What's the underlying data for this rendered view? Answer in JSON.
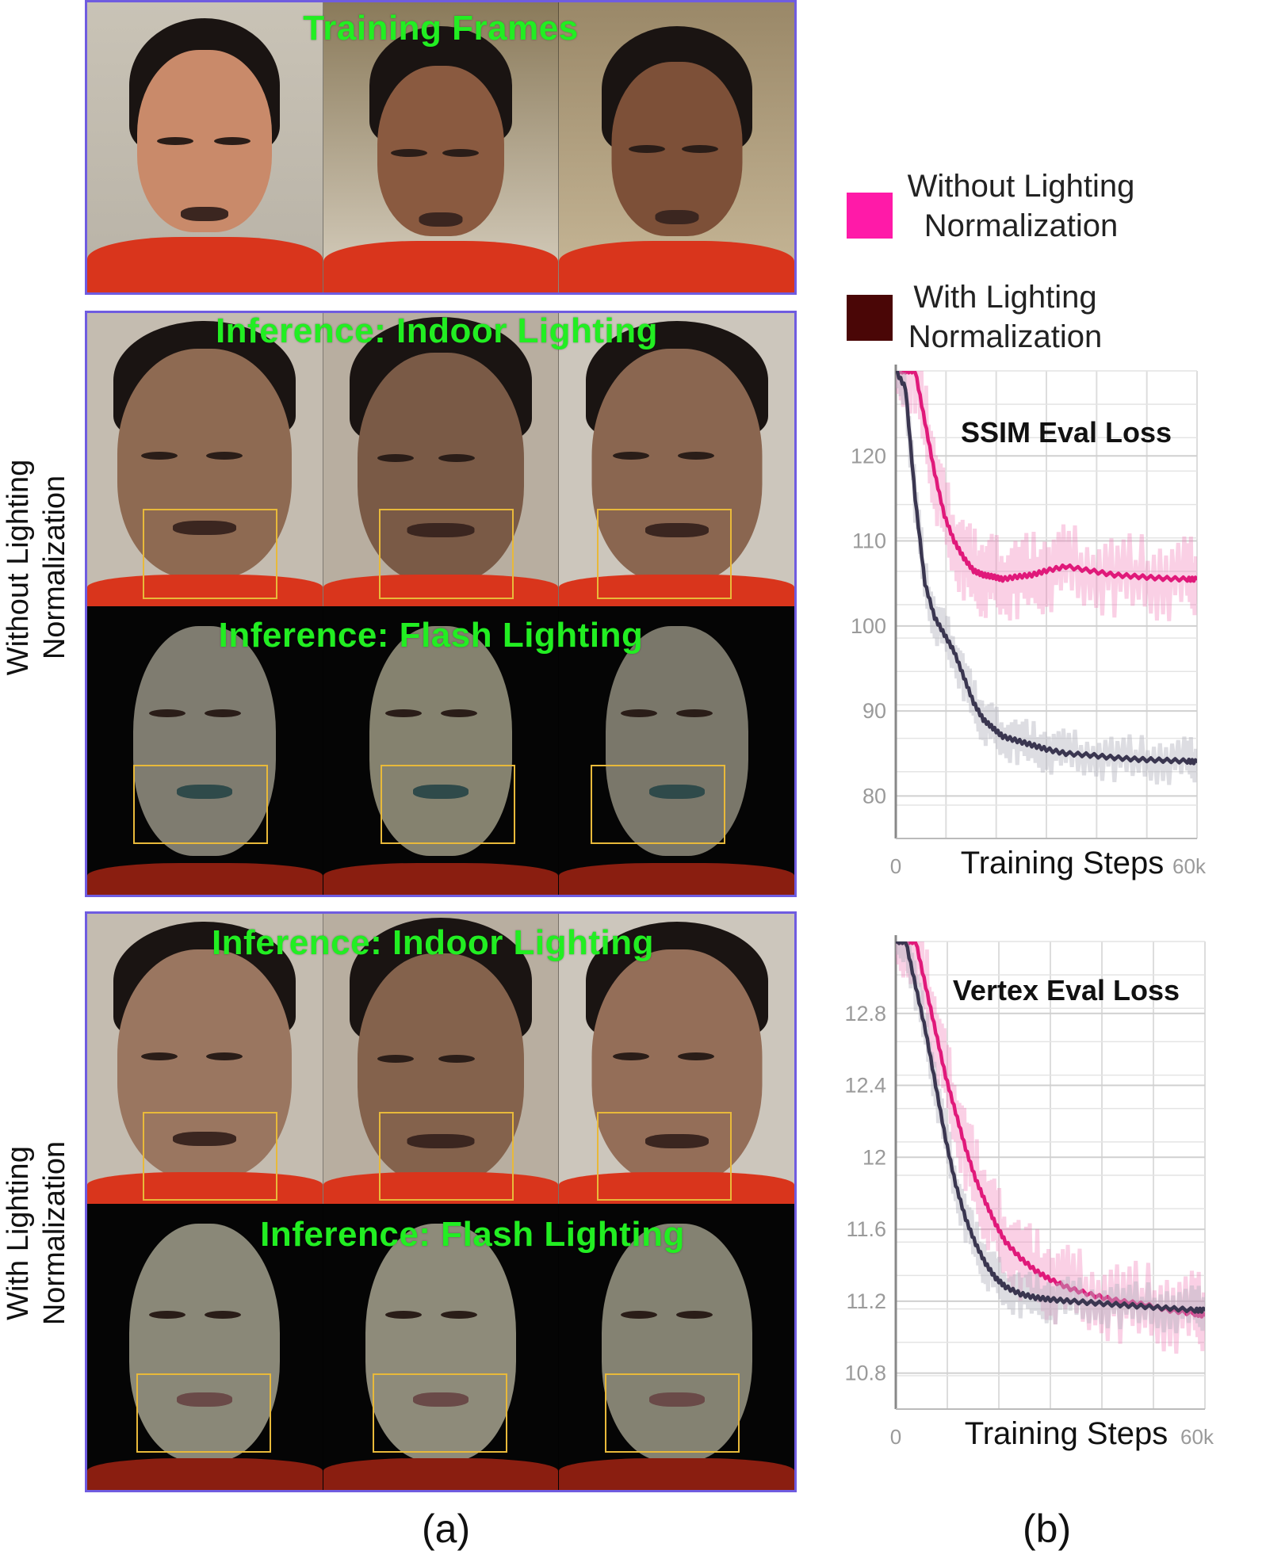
{
  "panel_a": {
    "training_title": "Training Frames",
    "without_indoor_title": "Inference: Indoor Lighting",
    "without_flash_title": "Inference: Flash Lighting",
    "with_indoor_title": "Inference: Indoor Lighting",
    "with_flash_title": "Inference: Flash Lighting",
    "side_label_without": "Without Lighting Normalization",
    "side_label_with": "With Lighting Normalization",
    "caption": "(a)"
  },
  "panel_b": {
    "caption": "(b)",
    "legend": [
      {
        "label_line1": "Without Lighting",
        "label_line2": "Normalization",
        "color": "#ff1aa8"
      },
      {
        "label_line1": "With Lighting",
        "label_line2": "Normalization",
        "color": "#4a0606"
      }
    ]
  },
  "colors": {
    "panel_border": "#6f5ce0",
    "title_green": "#22ee22",
    "mouth_box": "#e8b93a",
    "without_series": "#e0197a",
    "with_series": "#3a3650"
  },
  "chart_data": [
    {
      "type": "line",
      "title": "SSIM Eval Loss",
      "xlabel": "Training Steps",
      "x_tick_labels": [
        "0",
        "60k"
      ],
      "xlim": [
        0,
        62000
      ],
      "y_ticks": [
        120,
        110,
        100,
        90,
        80
      ],
      "ylim": [
        75,
        130
      ],
      "grid": true,
      "x": [
        0,
        2000,
        4000,
        6000,
        8000,
        10000,
        12000,
        14000,
        16000,
        18000,
        20000,
        22000,
        25000,
        28000,
        31000,
        35000,
        40000,
        45000,
        50000,
        55000,
        60000,
        62000
      ],
      "series": [
        {
          "name": "Without Lighting Normalization",
          "values": [
            130,
            130,
            130,
            124,
            118,
            113,
            110,
            108,
            106.5,
            106,
            105.8,
            105.5,
            105.8,
            106,
            106.5,
            107,
            106.5,
            106,
            105.8,
            105.6,
            105.5,
            105.5
          ]
        },
        {
          "name": "With Lighting Normalization",
          "values": [
            130,
            128,
            115,
            105,
            101,
            99,
            97,
            94,
            91,
            89,
            88,
            87,
            86.5,
            86,
            85.5,
            85,
            84.8,
            84.5,
            84.3,
            84.2,
            84.1,
            84
          ]
        }
      ]
    },
    {
      "type": "line",
      "title": "Vertex Eval Loss",
      "xlabel": "Training Steps",
      "x_tick_labels": [
        "0",
        "60k"
      ],
      "xlim": [
        0,
        62000
      ],
      "y_ticks": [
        12.8,
        12.4,
        12,
        11.6,
        11.2,
        10.8
      ],
      "y_tick_labels": [
        "12.8",
        "12.4",
        "12",
        "11.6",
        "11.2",
        "10.8"
      ],
      "ylim": [
        10.6,
        13.2
      ],
      "grid": true,
      "x": [
        0,
        2000,
        4000,
        6000,
        8000,
        10000,
        12000,
        14000,
        16000,
        18000,
        20000,
        22000,
        25000,
        28000,
        31000,
        35000,
        40000,
        45000,
        50000,
        55000,
        60000,
        62000
      ],
      "series": [
        {
          "name": "Without Lighting Normalization",
          "values": [
            13.2,
            13.2,
            13.2,
            12.95,
            12.7,
            12.45,
            12.25,
            12.05,
            11.88,
            11.75,
            11.63,
            11.53,
            11.44,
            11.37,
            11.32,
            11.27,
            11.23,
            11.2,
            11.18,
            11.15,
            11.13,
            11.12
          ]
        },
        {
          "name": "With Lighting Normalization",
          "values": [
            13.2,
            13.2,
            12.95,
            12.7,
            12.4,
            12.1,
            11.85,
            11.66,
            11.52,
            11.41,
            11.33,
            11.28,
            11.24,
            11.22,
            11.21,
            11.2,
            11.19,
            11.18,
            11.17,
            11.16,
            11.15,
            11.15
          ]
        }
      ]
    }
  ]
}
